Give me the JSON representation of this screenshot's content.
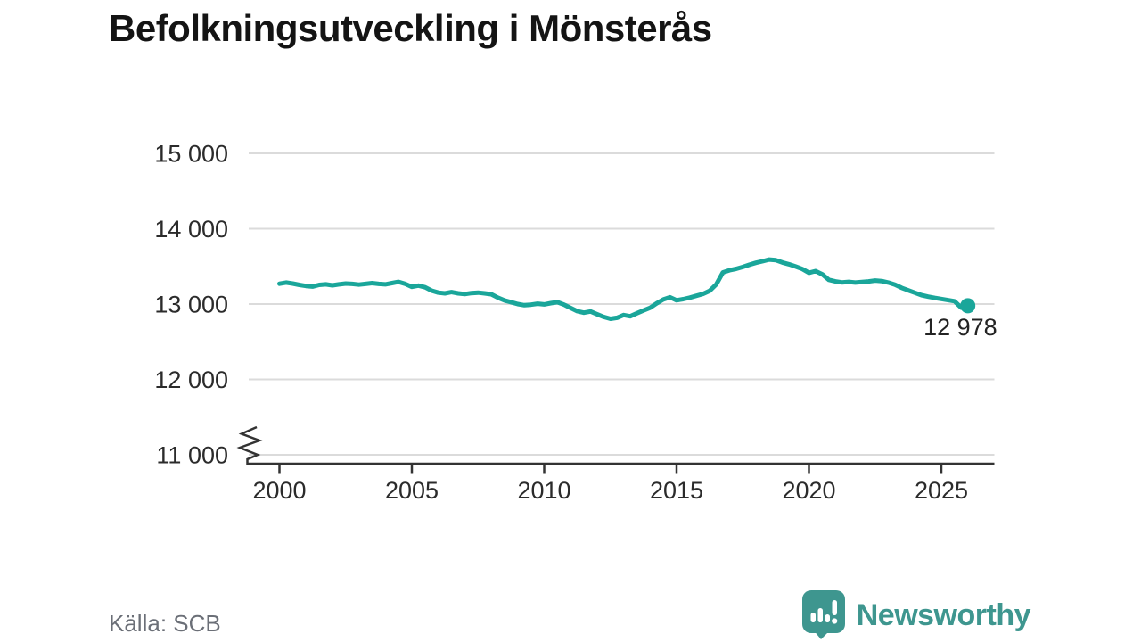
{
  "header": {
    "title": "Befolkningsutveckling i Mönsterås"
  },
  "source": {
    "label": "Källa: SCB"
  },
  "logo": {
    "brand_name": "Newsworthy",
    "color": "#3E968F"
  },
  "colors": {
    "line": "#1AA69A",
    "grid": "#DBDBDB",
    "axis": "#333333",
    "tick_text": "#2B2B2B",
    "source_text": "#6B6F77",
    "logo_teal": "#3E968F"
  },
  "chart_data": {
    "type": "line",
    "title": "Befolkningsutveckling i Mönsterås",
    "xlabel": "",
    "ylabel": "",
    "legend": false,
    "grid": "horizontal-only",
    "y_axis_break": true,
    "xlim": [
      1998.8,
      2027.1
    ],
    "ylim": [
      11000,
      15000
    ],
    "x_ticks": {
      "values": [
        2000,
        2005,
        2010,
        2015,
        2020,
        2025
      ],
      "labels": [
        "2000",
        "2005",
        "2010",
        "2015",
        "2020",
        "2025"
      ]
    },
    "y_ticks": {
      "values": [
        11000,
        12000,
        13000,
        14000,
        15000
      ],
      "labels": [
        "11 000",
        "12 000",
        "13 000",
        "14 000",
        "15 000"
      ]
    },
    "series": [
      {
        "name": "Befolkning",
        "color": "#1AA69A",
        "points": [
          [
            2000,
            13270
          ],
          [
            2000.25,
            13285
          ],
          [
            2000.5,
            13272
          ],
          [
            2000.75,
            13255
          ],
          [
            2001,
            13240
          ],
          [
            2001.25,
            13232
          ],
          [
            2001.5,
            13255
          ],
          [
            2001.75,
            13262
          ],
          [
            2002,
            13248
          ],
          [
            2002.25,
            13262
          ],
          [
            2002.5,
            13272
          ],
          [
            2002.75,
            13268
          ],
          [
            2003,
            13258
          ],
          [
            2003.25,
            13268
          ],
          [
            2003.5,
            13278
          ],
          [
            2003.75,
            13268
          ],
          [
            2004,
            13262
          ],
          [
            2004.25,
            13278
          ],
          [
            2004.5,
            13295
          ],
          [
            2004.75,
            13268
          ],
          [
            2005,
            13228
          ],
          [
            2005.25,
            13245
          ],
          [
            2005.5,
            13222
          ],
          [
            2005.75,
            13178
          ],
          [
            2006,
            13152
          ],
          [
            2006.25,
            13142
          ],
          [
            2006.5,
            13158
          ],
          [
            2006.75,
            13142
          ],
          [
            2007,
            13132
          ],
          [
            2007.25,
            13145
          ],
          [
            2007.5,
            13152
          ],
          [
            2007.75,
            13142
          ],
          [
            2008,
            13130
          ],
          [
            2008.25,
            13085
          ],
          [
            2008.5,
            13048
          ],
          [
            2008.75,
            13025
          ],
          [
            2009,
            13000
          ],
          [
            2009.25,
            12985
          ],
          [
            2009.5,
            12992
          ],
          [
            2009.75,
            13005
          ],
          [
            2010,
            12995
          ],
          [
            2010.25,
            13012
          ],
          [
            2010.5,
            13025
          ],
          [
            2010.75,
            12992
          ],
          [
            2011,
            12948
          ],
          [
            2011.25,
            12905
          ],
          [
            2011.5,
            12885
          ],
          [
            2011.75,
            12902
          ],
          [
            2012,
            12865
          ],
          [
            2012.25,
            12830
          ],
          [
            2012.5,
            12805
          ],
          [
            2012.75,
            12818
          ],
          [
            2013,
            12855
          ],
          [
            2013.25,
            12838
          ],
          [
            2013.5,
            12878
          ],
          [
            2013.75,
            12915
          ],
          [
            2014,
            12950
          ],
          [
            2014.25,
            13010
          ],
          [
            2014.5,
            13060
          ],
          [
            2014.75,
            13090
          ],
          [
            2015,
            13050
          ],
          [
            2015.25,
            13065
          ],
          [
            2015.5,
            13085
          ],
          [
            2015.75,
            13110
          ],
          [
            2016,
            13135
          ],
          [
            2016.25,
            13175
          ],
          [
            2016.5,
            13260
          ],
          [
            2016.75,
            13420
          ],
          [
            2017,
            13448
          ],
          [
            2017.25,
            13468
          ],
          [
            2017.5,
            13492
          ],
          [
            2017.75,
            13522
          ],
          [
            2018,
            13548
          ],
          [
            2018.25,
            13568
          ],
          [
            2018.5,
            13590
          ],
          [
            2018.75,
            13582
          ],
          [
            2019,
            13552
          ],
          [
            2019.25,
            13528
          ],
          [
            2019.5,
            13498
          ],
          [
            2019.75,
            13465
          ],
          [
            2020,
            13415
          ],
          [
            2020.25,
            13438
          ],
          [
            2020.5,
            13395
          ],
          [
            2020.75,
            13322
          ],
          [
            2021,
            13300
          ],
          [
            2021.25,
            13288
          ],
          [
            2021.5,
            13295
          ],
          [
            2021.75,
            13285
          ],
          [
            2022,
            13292
          ],
          [
            2022.25,
            13300
          ],
          [
            2022.5,
            13312
          ],
          [
            2022.75,
            13305
          ],
          [
            2023,
            13285
          ],
          [
            2023.25,
            13258
          ],
          [
            2023.5,
            13215
          ],
          [
            2023.75,
            13182
          ],
          [
            2024,
            13150
          ],
          [
            2024.25,
            13118
          ],
          [
            2024.5,
            13098
          ],
          [
            2024.75,
            13082
          ],
          [
            2025,
            13068
          ],
          [
            2025.25,
            13052
          ],
          [
            2025.5,
            13038
          ],
          [
            2025.75,
            12952
          ],
          [
            2026,
            12978
          ]
        ]
      }
    ],
    "end_annotation": {
      "label": "12 978",
      "value": 12978,
      "x": 2026
    }
  }
}
